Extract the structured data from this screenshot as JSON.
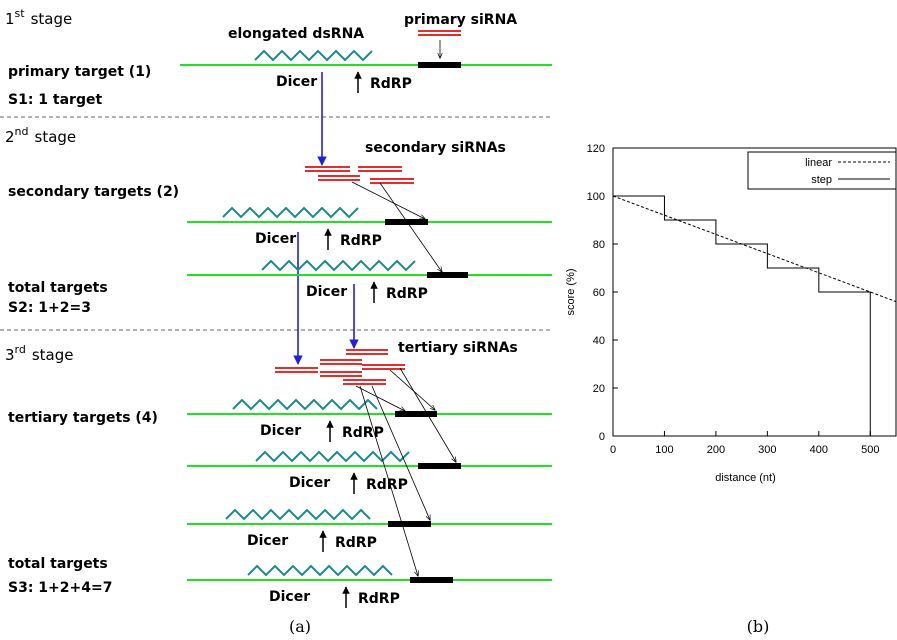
{
  "diagram": {
    "stages": [
      {
        "number": "1",
        "ordinal": "st",
        "word": "stage"
      },
      {
        "number": "2",
        "ordinal": "nd",
        "word": "stage"
      },
      {
        "number": "3",
        "ordinal": "rd",
        "word": "stage"
      }
    ],
    "labels": {
      "dsrna": "elongated dsRNA",
      "primary_sirna": "primary siRNA",
      "primary_target": "primary target (1)",
      "s1": "S1: 1 target",
      "secondary_sirnas": "secondary siRNAs",
      "secondary_targets": "secondary targets (2)",
      "total_targets_2": "total targets",
      "s2": "S2: 1+2=3",
      "tertiary_sirnas": "tertiary siRNAs",
      "tertiary_targets": "tertiary targets (4)",
      "total_targets_3": "total targets",
      "s3": "S3: 1+2+4=7"
    },
    "targets": [
      {
        "dicer": "Dicer",
        "rdrp": "RdRP"
      },
      {
        "dicer": "Dicer",
        "rdrp": "RdRP"
      },
      {
        "dicer": "Dicer",
        "rdrp": "RdRP"
      },
      {
        "dicer": "Dicer",
        "rdrp": "RdRP"
      },
      {
        "dicer": "Dicer",
        "rdrp": "RdRP"
      },
      {
        "dicer": "Dicer",
        "rdrp": "RdRP"
      },
      {
        "dicer": "Dicer",
        "rdrp": "RdRP"
      }
    ],
    "captions": [
      "(a)",
      "(b)"
    ]
  },
  "chart_data": {
    "type": "line",
    "x_label": "distance (nt)",
    "y_label": "score (%)",
    "xlim": [
      0,
      550
    ],
    "ylim": [
      0,
      120
    ],
    "xticks": [
      0,
      100,
      200,
      300,
      400,
      500
    ],
    "yticks": [
      0,
      20,
      40,
      60,
      80,
      100,
      120
    ],
    "legend": "top-right",
    "series": [
      {
        "name": "linear",
        "color": "#000000",
        "line_style": "dashed",
        "x": [
          0,
          550
        ],
        "values": [
          100,
          56
        ]
      },
      {
        "name": "step",
        "color": "#000000",
        "line_style": "solid",
        "x": [
          0,
          100,
          100,
          200,
          200,
          300,
          300,
          400,
          400,
          500,
          500
        ],
        "values": [
          100,
          100,
          90,
          90,
          80,
          80,
          70,
          70,
          60,
          60,
          0
        ]
      }
    ]
  }
}
